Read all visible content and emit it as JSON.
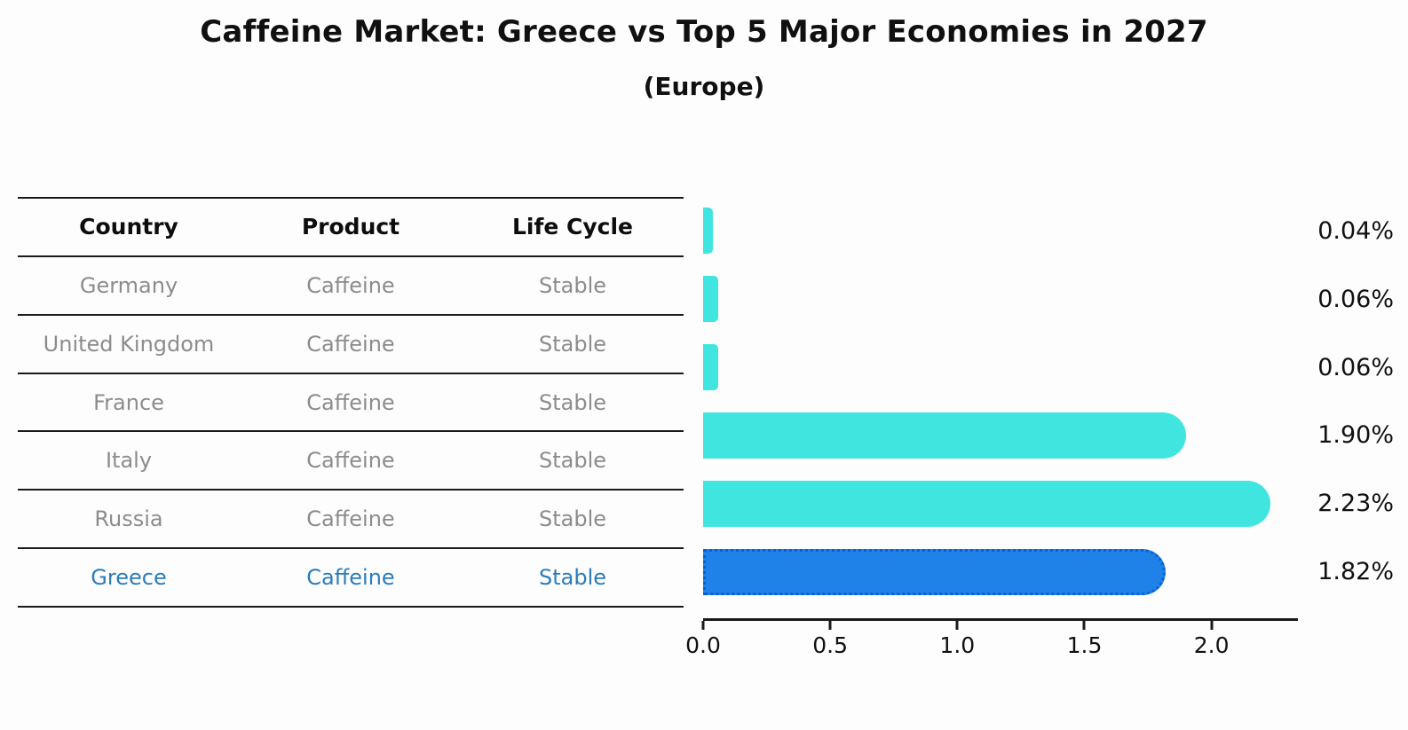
{
  "title": "Caffeine Market: Greece vs Top 5 Major Economies in 2027",
  "subtitle": "(Europe)",
  "table": {
    "headers": [
      "Country",
      "Product",
      "Life Cycle"
    ],
    "rows": [
      {
        "country": "Germany",
        "product": "Caffeine",
        "life_cycle": "Stable",
        "highlighted": false
      },
      {
        "country": "United Kingdom",
        "product": "Caffeine",
        "life_cycle": "Stable",
        "highlighted": false
      },
      {
        "country": "France",
        "product": "Caffeine",
        "life_cycle": "Stable",
        "highlighted": false
      },
      {
        "country": "Italy",
        "product": "Caffeine",
        "life_cycle": "Stable",
        "highlighted": false
      },
      {
        "country": "Russia",
        "product": "Caffeine",
        "life_cycle": "Stable",
        "highlighted": false
      },
      {
        "country": "Greece",
        "product": "Caffeine",
        "life_cycle": "Stable",
        "highlighted": true
      }
    ]
  },
  "chart_data": {
    "type": "bar",
    "orientation": "horizontal",
    "title": "Caffeine Market: Greece vs Top 5 Major Economies in 2027",
    "subtitle": "(Europe)",
    "categories": [
      "Germany",
      "United Kingdom",
      "France",
      "Italy",
      "Russia",
      "Greece"
    ],
    "values": [
      0.04,
      0.06,
      0.06,
      1.9,
      2.23,
      1.82
    ],
    "value_labels": [
      "0.04%",
      "0.06%",
      "0.06%",
      "1.90%",
      "2.23%",
      "1.82%"
    ],
    "highlight_category": "Greece",
    "xlim": [
      0,
      2.34
    ],
    "x_ticks": [
      0,
      0.5,
      1.0,
      1.5,
      2.0
    ],
    "x_tick_labels": [
      "0.0",
      "0.5",
      "1.0",
      "1.5",
      "2.0"
    ],
    "grid": false,
    "legend": false,
    "colors": {
      "bar": "#40E5E0",
      "highlight_bar": "#1E82E8",
      "highlight_border": "#0E5ED4",
      "table_text": "#8C8C8C",
      "highlight_text": "#2B7CBA",
      "header_text": "#0D0D0D",
      "axis": "#1A1A1A",
      "value_label": "#111111"
    }
  }
}
